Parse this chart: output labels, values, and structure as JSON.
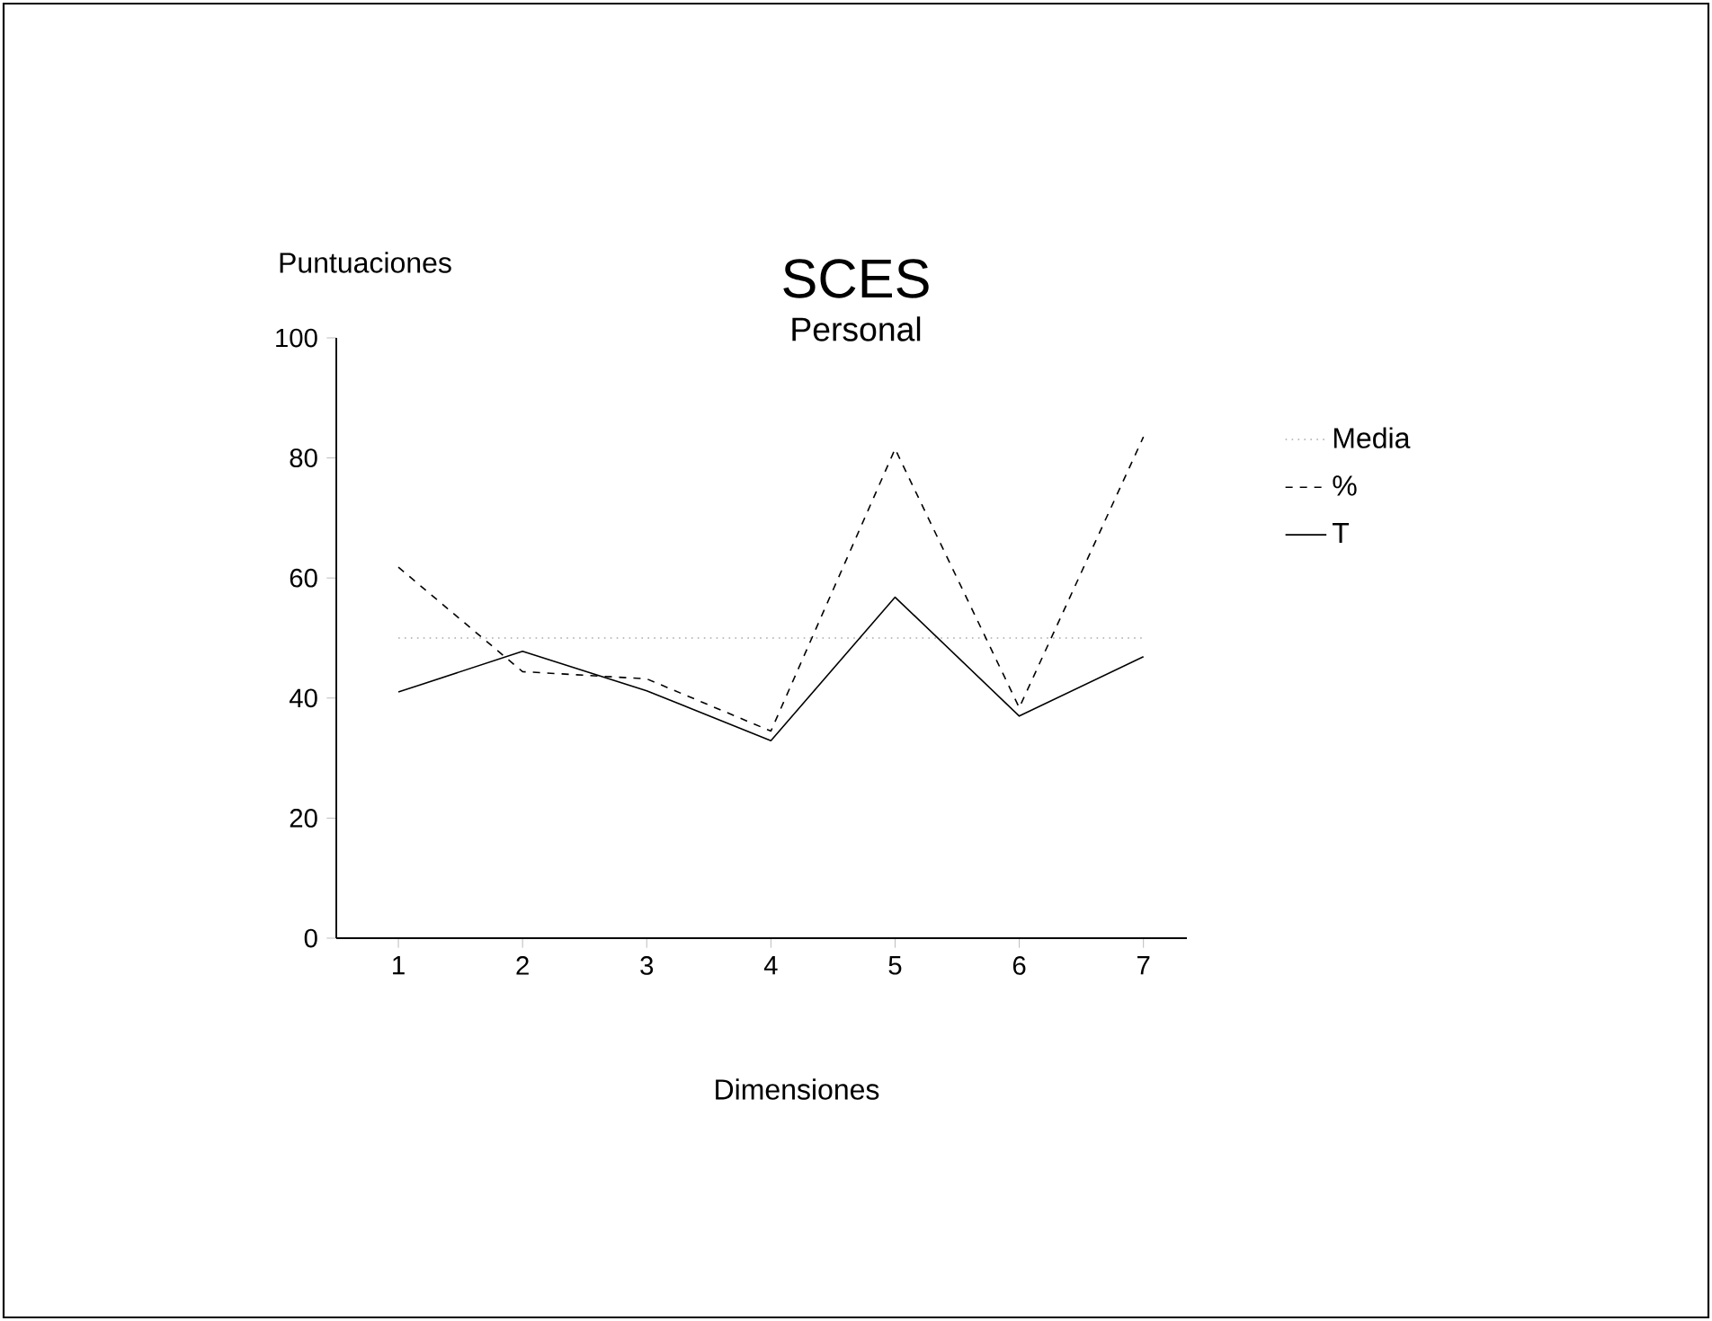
{
  "chart_data": {
    "type": "line",
    "title": "SCES",
    "subtitle": "Personal",
    "xlabel": "Dimensiones",
    "ylabel": "Puntuaciones",
    "categories": [
      "1",
      "2",
      "3",
      "4",
      "5",
      "6",
      "7"
    ],
    "series": [
      {
        "name": "Media",
        "color": "#aaaaaa",
        "line_style": "dotted",
        "values": [
          50,
          50,
          50,
          50,
          50,
          50,
          50
        ]
      },
      {
        "name": "%",
        "color": "#000000",
        "line_style": "dashed",
        "values": [
          61.8,
          44.4,
          43.2,
          34.5,
          81.5,
          38.4,
          83.5
        ]
      },
      {
        "name": "T",
        "color": "#000000",
        "line_style": "solid",
        "values": [
          41,
          47.8,
          41.2,
          32.9,
          56.8,
          37,
          46.9
        ]
      }
    ],
    "ylim": [
      0,
      100
    ],
    "yticks": [
      0,
      20,
      40,
      60,
      80,
      100
    ],
    "grid": false,
    "legend": "right",
    "marker": "none"
  }
}
